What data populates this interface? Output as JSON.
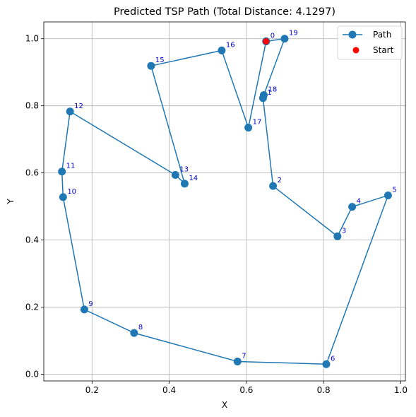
{
  "chart_data": {
    "type": "line",
    "title": "Predicted TSP Path (Total Distance: 4.1297)",
    "xlabel": "X",
    "ylabel": "Y",
    "xlim": [
      0.075,
      1.012
    ],
    "ylim": [
      -0.02,
      1.05
    ],
    "xticks": [
      0.2,
      0.4,
      0.6,
      0.8,
      1.0
    ],
    "xtick_labels": [
      "0.2",
      "0.4",
      "0.6",
      "0.8",
      "1.0"
    ],
    "yticks": [
      0.0,
      0.2,
      0.4,
      0.6,
      0.8,
      1.0
    ],
    "ytick_labels": [
      "0.0",
      "0.2",
      "0.4",
      "0.6",
      "0.8",
      "1.0"
    ],
    "grid": true,
    "legend_position": "top-right",
    "series": [
      {
        "name": "Path",
        "color": "#1f77b4",
        "marker": "circle",
        "points": [
          {
            "label": "0",
            "x": 0.651,
            "y": 0.992
          },
          {
            "label": "19",
            "x": 0.699,
            "y": 1.0
          },
          {
            "label": "18",
            "x": 0.645,
            "y": 0.832
          },
          {
            "label": "1",
            "x": 0.643,
            "y": 0.823
          },
          {
            "label": "2",
            "x": 0.669,
            "y": 0.561
          },
          {
            "label": "3",
            "x": 0.836,
            "y": 0.411
          },
          {
            "label": "4",
            "x": 0.874,
            "y": 0.499
          },
          {
            "label": "5",
            "x": 0.967,
            "y": 0.533
          },
          {
            "label": "6",
            "x": 0.807,
            "y": 0.03
          },
          {
            "label": "7",
            "x": 0.577,
            "y": 0.038
          },
          {
            "label": "8",
            "x": 0.309,
            "y": 0.123
          },
          {
            "label": "9",
            "x": 0.18,
            "y": 0.193
          },
          {
            "label": "10",
            "x": 0.125,
            "y": 0.528
          },
          {
            "label": "11",
            "x": 0.122,
            "y": 0.604
          },
          {
            "label": "12",
            "x": 0.143,
            "y": 0.783
          },
          {
            "label": "13",
            "x": 0.416,
            "y": 0.594
          },
          {
            "label": "14",
            "x": 0.44,
            "y": 0.568
          },
          {
            "label": "15",
            "x": 0.353,
            "y": 0.919
          },
          {
            "label": "16",
            "x": 0.536,
            "y": 0.965
          },
          {
            "label": "17",
            "x": 0.605,
            "y": 0.735
          },
          {
            "label": "0",
            "x": 0.651,
            "y": 0.992
          }
        ]
      },
      {
        "name": "Start",
        "color": "#ff0000",
        "marker": "circle",
        "points": [
          {
            "x": 0.651,
            "y": 0.992
          }
        ]
      }
    ],
    "point_label_color": "#0000cc"
  }
}
